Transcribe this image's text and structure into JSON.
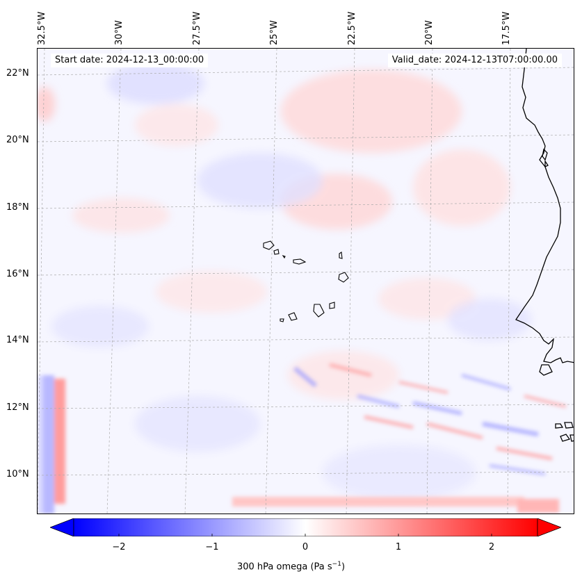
{
  "map": {
    "title_left": "Start date: 2024-12-13_00:00:00",
    "title_right": "Valid_date: 2024-12-13T07:00:00.00",
    "longitude_labels": [
      "32.5°W",
      "30°W",
      "27.5°W",
      "25°W",
      "22.5°W",
      "20°W",
      "17.5°W"
    ],
    "latitude_labels": [
      "22°N",
      "20°N",
      "18°N",
      "16°N",
      "14°N",
      "12°N",
      "10°N"
    ],
    "features": [
      "coastline-west-africa",
      "cape-verde-islands",
      "gridlines"
    ]
  },
  "colorbar": {
    "label": "300 hPa omega (Pa s",
    "label_superscript": "−1",
    "label_suffix": ")",
    "ticks": [
      "−2",
      "−1",
      "0",
      "1",
      "2"
    ],
    "range": [
      -2.75,
      2.75
    ],
    "extend": "both",
    "colormap": "bwr",
    "colors": {
      "negative": "#0000ff",
      "zero": "#ffffff",
      "positive": "#ff0000"
    }
  }
}
